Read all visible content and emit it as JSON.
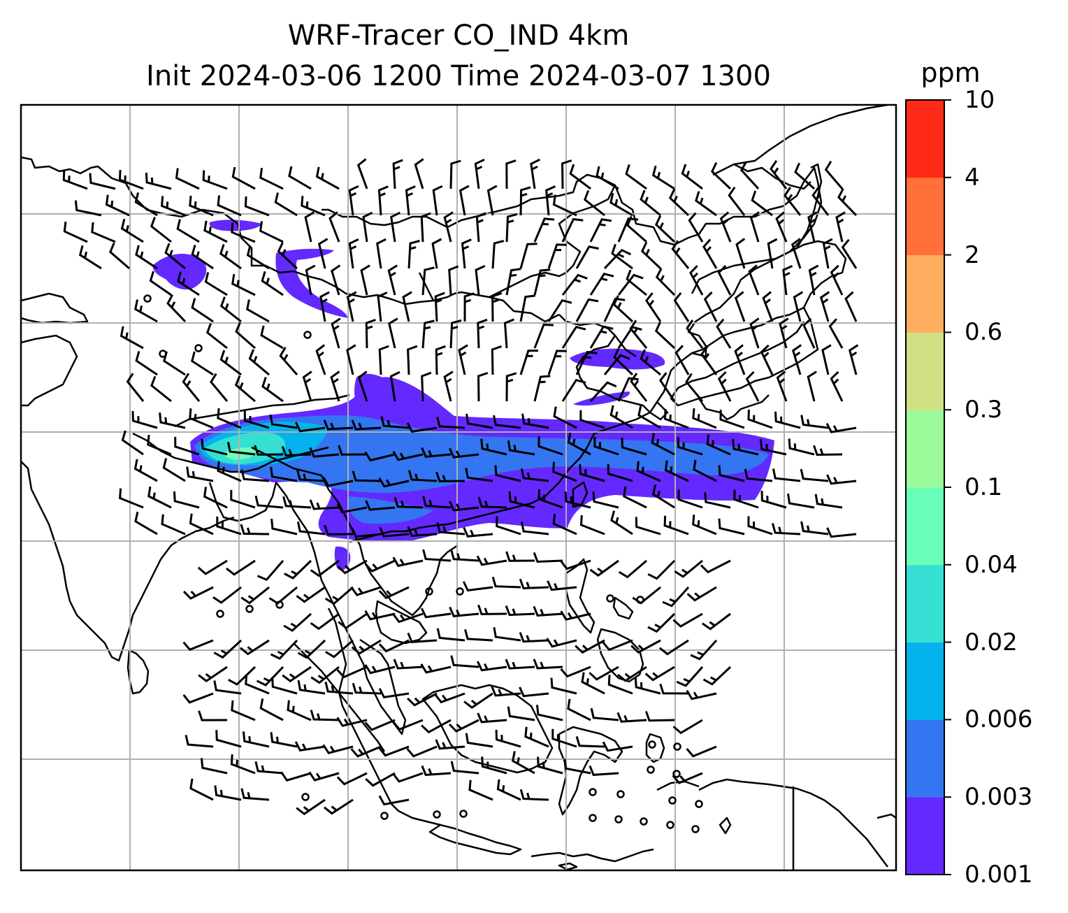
{
  "title": {
    "line1": "WRF-Tracer CO_IND 4km",
    "line2": "Init 2024-03-06 1200 Time 2024-03-07 1300"
  },
  "colorbar": {
    "unit": "ppm",
    "ticks": [
      "0.001",
      "0.003",
      "0.006",
      "0.02",
      "0.04",
      "0.1",
      "0.3",
      "0.6",
      "2",
      "4",
      "10"
    ],
    "colors": [
      "#6329ff",
      "#3475f1",
      "#04b3ed",
      "#35dfd4",
      "#6affb9",
      "#9bfa99",
      "#cfe184",
      "#ffae5f",
      "#ff7138",
      "#ff2a17"
    ]
  },
  "map": {
    "gridlines": true,
    "gridline_color": "#b0b0b0",
    "coastline_color": "#000000",
    "wind_barbs": true,
    "calm_marker": "circle"
  }
}
